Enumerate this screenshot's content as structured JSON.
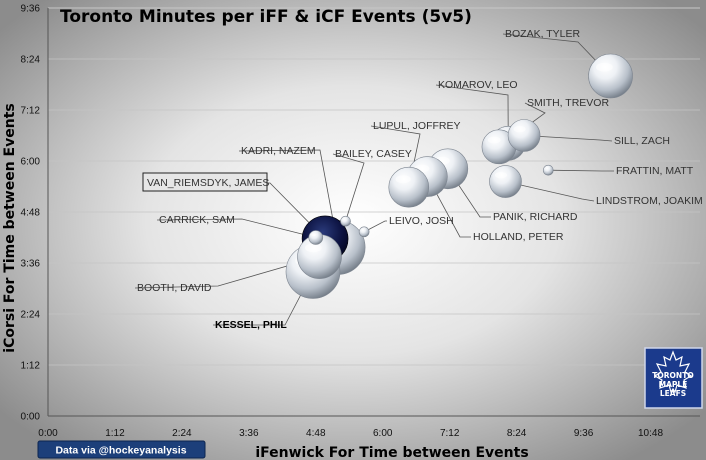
{
  "chart_data": {
    "type": "bubble",
    "title": "Toronto  Minutes per iFF & iCF Events (5v5)",
    "xlabel": "iFenwick For Time between Events",
    "ylabel": "iCorsi For Time between Events",
    "x_ticks": [
      "0:00",
      "1:12",
      "2:24",
      "3:36",
      "4:48",
      "6:00",
      "7:12",
      "8:24",
      "9:36",
      "10:48"
    ],
    "y_ticks": [
      "0:00",
      "1:12",
      "2:24",
      "3:36",
      "4:48",
      "6:00",
      "7:12",
      "8:24",
      "9:36"
    ],
    "xlim_seconds": [
      0,
      684
    ],
    "ylim_seconds": [
      0,
      576
    ],
    "credit": "Data via @hockeyanalysis",
    "logo": {
      "line1": "TORONTO",
      "line2": "MAPLE",
      "line3": "LEAFS"
    },
    "points": [
      {
        "name": "BOZAK, TYLER",
        "x": "10:05",
        "y": "8:00",
        "size": 22,
        "color": "silver"
      },
      {
        "name": "KOMAROV, LEO",
        "x": "8:15",
        "y": "6:25",
        "size": 17,
        "color": "silver"
      },
      {
        "name": "SMITH, TREVOR",
        "x": "8:05",
        "y": "6:20",
        "size": 17,
        "color": "silver"
      },
      {
        "name": "SILL, ZACH",
        "x": "8:32",
        "y": "6:36",
        "size": 16,
        "color": "silver"
      },
      {
        "name": "FRATTIN, MATT",
        "x": "8:58",
        "y": "5:47",
        "size": 5,
        "color": "silver"
      },
      {
        "name": "LINDSTROM, JOAKIM",
        "x": "8:12",
        "y": "5:31",
        "size": 16,
        "color": "silver"
      },
      {
        "name": "PANIK, RICHARD",
        "x": "7:10",
        "y": "5:49",
        "size": 20,
        "color": "silver"
      },
      {
        "name": "HOLLAND, PETER",
        "x": "6:48",
        "y": "5:38",
        "size": 20,
        "color": "silver"
      },
      {
        "name": "LUPUL, JOFFREY",
        "x": "6:28",
        "y": "5:23",
        "size": 20,
        "color": "silver"
      },
      {
        "name": "LEIVO, JOSH",
        "x": "5:40",
        "y": "4:20",
        "size": 5,
        "color": "silver"
      },
      {
        "name": "BAILEY, CASEY",
        "x": "5:20",
        "y": "4:35",
        "size": 5,
        "color": "silver"
      },
      {
        "name": "KADRI, NAZEM",
        "x": "5:12",
        "y": "3:58",
        "size": 27,
        "color": "silver"
      },
      {
        "name": "VAN_RIEMSDYK, JAMES",
        "x": "4:58",
        "y": "4:10",
        "size": 23,
        "color": "navy"
      },
      {
        "name": "CARRICK, SAM",
        "x": "4:48",
        "y": "4:12",
        "size": 7,
        "color": "silver"
      },
      {
        "name": "BOOTH, DAVID",
        "x": "4:52",
        "y": "3:45",
        "size": 22,
        "color": "silver"
      },
      {
        "name": "KESSEL, PHIL",
        "x": "4:45",
        "y": "3:24",
        "size": 27,
        "color": "silver"
      }
    ]
  }
}
